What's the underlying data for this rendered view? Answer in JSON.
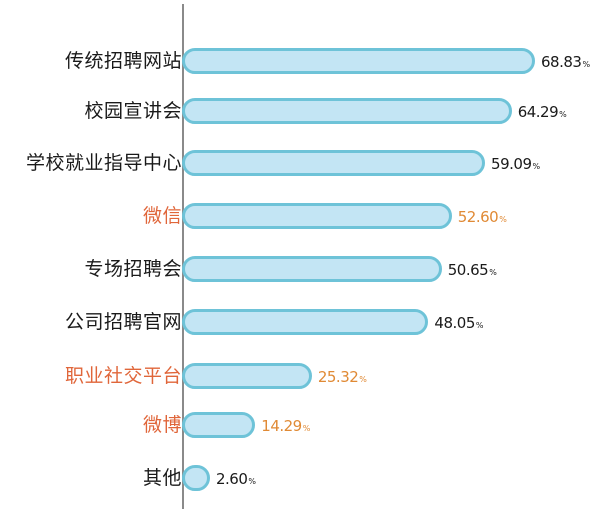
{
  "chart_data": {
    "type": "bar",
    "orientation": "horizontal",
    "title": "",
    "xlabel": "",
    "ylabel": "",
    "grid": false,
    "legend": null,
    "unit": "%",
    "xlim": [
      0,
      70
    ],
    "categories": [
      "传统招聘网站",
      "校园宣讲会",
      "学校就业指导中心",
      "微信",
      "专场招聘会",
      "公司招聘官网",
      "职业社交平台",
      "微博",
      "其他"
    ],
    "values": [
      68.83,
      64.29,
      59.09,
      52.6,
      50.65,
      48.05,
      25.32,
      14.29,
      2.6
    ],
    "highlighted": [
      "微信",
      "职业社交平台",
      "微博"
    ],
    "colors": {
      "bar_fill": "#c3e5f4",
      "bar_border": "#6ec3d8",
      "highlight_label": "#e0663a",
      "highlight_value": "#e08a35",
      "text": "#1a1a1a",
      "axis": "#8a8a8a"
    }
  },
  "rows": [
    {
      "label": "传统招聘网站",
      "value": "68.83",
      "pct": "%",
      "hl": false
    },
    {
      "label": "校园宣讲会",
      "value": "64.29",
      "pct": "%",
      "hl": false
    },
    {
      "label": "学校就业指导中心",
      "value": "59.09",
      "pct": "%",
      "hl": false
    },
    {
      "label": "微信",
      "value": "52.60",
      "pct": "%",
      "hl": true
    },
    {
      "label": "专场招聘会",
      "value": "50.65",
      "pct": "%",
      "hl": false
    },
    {
      "label": "公司招聘官网",
      "value": "48.05",
      "pct": "%",
      "hl": false
    },
    {
      "label": "职业社交平台",
      "value": "25.32",
      "pct": "%",
      "hl": true
    },
    {
      "label": "微博",
      "value": "14.29",
      "pct": "%",
      "hl": true
    },
    {
      "label": "其他",
      "value": "2.60",
      "pct": "%",
      "hl": false
    }
  ]
}
